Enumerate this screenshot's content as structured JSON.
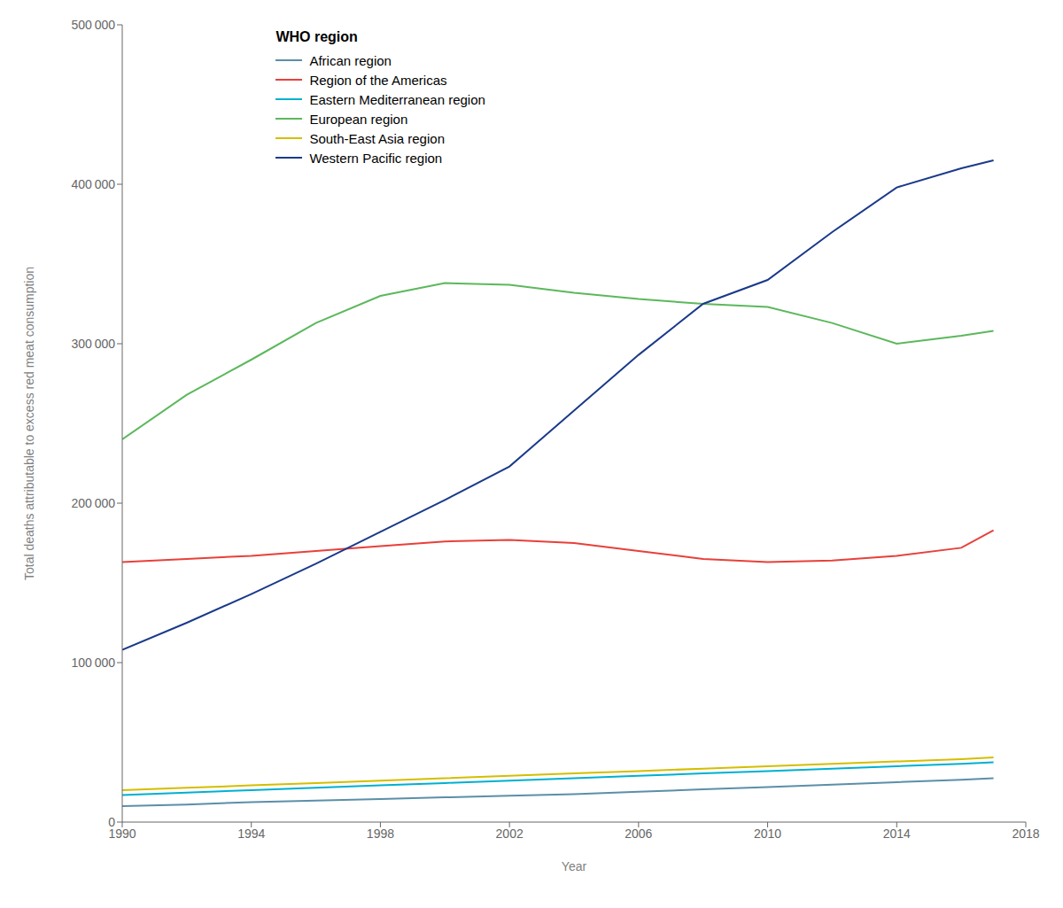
{
  "chart_data": {
    "type": "line",
    "xlabel": "Year",
    "ylabel": "Total deaths attributable to excess red meat consumption",
    "legend_title": "WHO region",
    "legend": "upper left",
    "grid": false,
    "xlim": [
      1990,
      2018
    ],
    "xticks": [
      1990,
      1994,
      1998,
      2002,
      2006,
      2010,
      2014,
      2018
    ],
    "ylim": [
      0,
      500000
    ],
    "yticks": [
      0,
      {
        "value": 100000,
        "label": "100 000"
      },
      {
        "value": 200000,
        "label": "200 000"
      },
      {
        "value": 300000,
        "label": "300 000"
      },
      {
        "value": 400000,
        "label": "400 000"
      },
      {
        "value": 500000,
        "label": "500 000"
      }
    ],
    "x": [
      1990,
      1992,
      1994,
      1996,
      1998,
      2000,
      2002,
      2004,
      2006,
      2008,
      2010,
      2012,
      2014,
      2016,
      2017
    ],
    "series": [
      {
        "name": "African region",
        "color": "#5b8fa8",
        "values": [
          10000,
          11000,
          12500,
          13500,
          14500,
          15500,
          16500,
          17500,
          19000,
          20500,
          22000,
          23500,
          25000,
          26500,
          27500
        ]
      },
      {
        "name": "Region of the Americas",
        "color": "#e8403a",
        "values": [
          163000,
          165000,
          167000,
          170000,
          173000,
          176000,
          177000,
          175000,
          170000,
          165000,
          163000,
          164000,
          167000,
          172000,
          183000
        ]
      },
      {
        "name": "Eastern Mediterranean region",
        "color": "#00b0d0",
        "values": [
          17000,
          18500,
          20000,
          21500,
          23000,
          24500,
          26000,
          27500,
          29000,
          30500,
          32000,
          33500,
          35000,
          36500,
          37500
        ]
      },
      {
        "name": "European region",
        "color": "#5cb85c",
        "values": [
          240000,
          268000,
          290000,
          313000,
          330000,
          338000,
          337000,
          332000,
          328000,
          325000,
          323000,
          313000,
          300000,
          305000,
          308000
        ]
      },
      {
        "name": "South-East Asia region",
        "color": "#d4be00",
        "values": [
          20000,
          21500,
          23000,
          24500,
          26000,
          27500,
          29000,
          30500,
          32000,
          33500,
          35000,
          36500,
          38000,
          39500,
          40500
        ]
      },
      {
        "name": "Western Pacific region",
        "color": "#1a3a8a",
        "values": [
          108000,
          125000,
          143000,
          162000,
          182000,
          202000,
          223000,
          258000,
          293000,
          325000,
          340000,
          370000,
          398000,
          410000,
          415000
        ]
      }
    ]
  }
}
